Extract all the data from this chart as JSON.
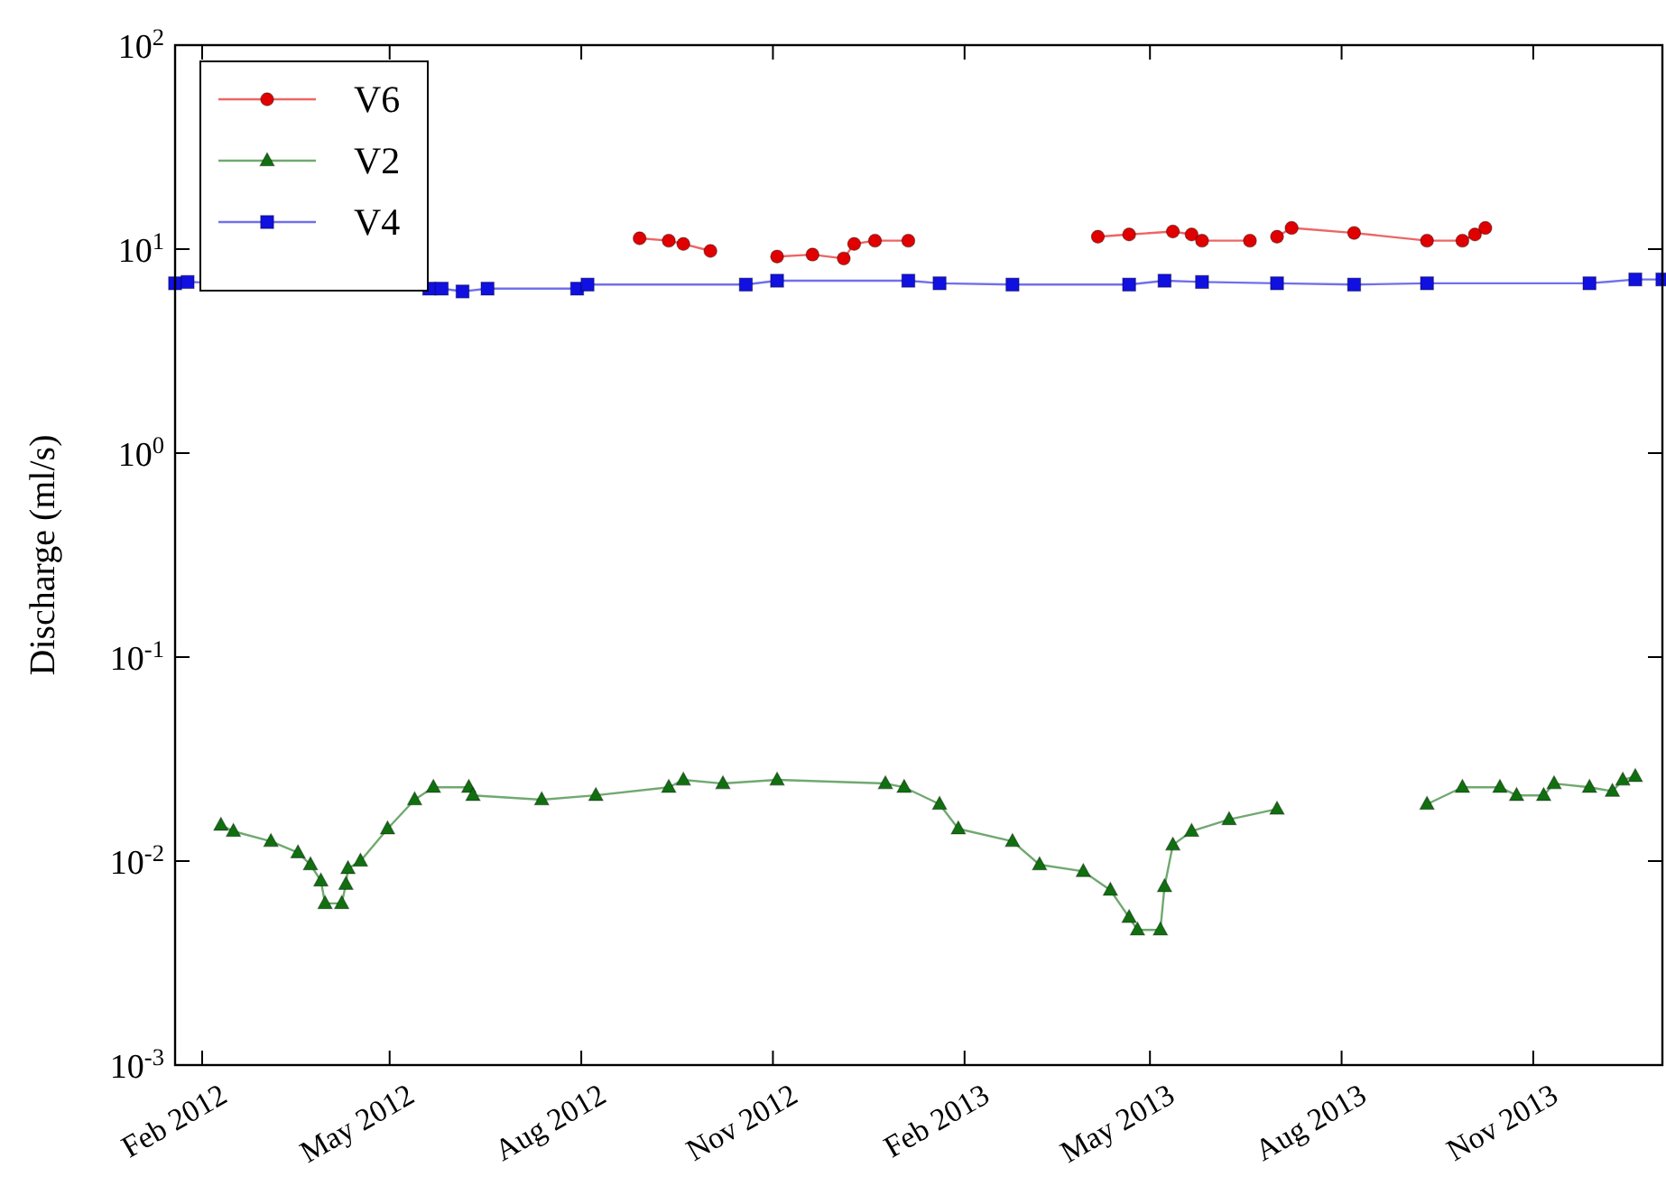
{
  "chart_data": {
    "type": "line",
    "ylabel": "Discharge (ml/s)",
    "log": "y",
    "legend": "top left",
    "grid": false,
    "xlim": [
      "2012-01-19",
      "2014-01-02"
    ],
    "ylim": [
      0.001,
      100
    ],
    "xticks": [
      {
        "value": "2012-02-01",
        "label": "Feb 2012"
      },
      {
        "value": "2012-05-01",
        "label": "May 2012"
      },
      {
        "value": "2012-08-01",
        "label": "Aug 2012"
      },
      {
        "value": "2012-11-01",
        "label": "Nov 2012"
      },
      {
        "value": "2013-02-01",
        "label": "Feb 2013"
      },
      {
        "value": "2013-05-01",
        "label": "May 2013"
      },
      {
        "value": "2013-08-01",
        "label": "Aug 2013"
      },
      {
        "value": "2013-11-01",
        "label": "Nov 2013"
      }
    ],
    "yticks": [
      {
        "value": 0.001,
        "label": "10$^{-3}$"
      },
      {
        "value": 0.01,
        "label": "10$^{-2}$"
      },
      {
        "value": 0.1,
        "label": "10$^{-1}$"
      },
      {
        "value": 1,
        "label": "10$^{0}$"
      },
      {
        "value": 10,
        "label": "10$^{1}$"
      },
      {
        "value": 100,
        "label": "10$^{2}$"
      }
    ],
    "series": [
      {
        "name": "V6",
        "color": "#e00000",
        "marker": "circle",
        "x": [
          "2012-08-29",
          "2012-09-12",
          "2012-09-19",
          "2012-10-02",
          "2012-10-19",
          "2012-11-03",
          "2012-11-20",
          "2012-12-05",
          "2012-12-10",
          "2012-12-20",
          "2013-01-05",
          "2013-02-15",
          "2013-04-06",
          "2013-04-21",
          "2013-05-12",
          "2013-05-21",
          "2013-05-26",
          "2013-06-18",
          "2013-06-25",
          "2013-07-01",
          "2013-07-08",
          "2013-08-07",
          "2013-09-11",
          "2013-09-28",
          "2013-10-04",
          "2013-10-09"
        ],
        "values": [
          11.3,
          11.0,
          10.6,
          9.8,
          null,
          9.2,
          9.4,
          9.0,
          10.6,
          11.0,
          11.0,
          null,
          11.5,
          11.8,
          12.2,
          11.8,
          11.0,
          11.0,
          null,
          11.5,
          12.7,
          12.0,
          11.0,
          11.0,
          11.8,
          12.7
        ]
      },
      {
        "name": "V2",
        "color": "#107010",
        "marker": "triangle",
        "x": [
          "2012-02-10",
          "2012-02-16",
          "2012-03-05",
          "2012-03-18",
          "2012-03-24",
          "2012-03-29",
          "2012-03-31",
          "2012-04-08",
          "2012-04-10",
          "2012-04-11",
          "2012-04-17",
          "2012-04-30",
          "2012-05-13",
          "2012-05-22",
          "2012-06-08",
          "2012-06-10",
          "2012-07-13",
          "2012-08-08",
          "2012-09-12",
          "2012-09-19",
          "2012-10-08",
          "2012-11-03",
          "2012-12-25",
          "2013-01-03",
          "2013-01-20",
          "2013-01-29",
          "2013-02-24",
          "2013-03-09",
          "2013-03-30",
          "2013-04-12",
          "2013-04-21",
          "2013-04-25",
          "2013-05-06",
          "2013-05-08",
          "2013-05-12",
          "2013-05-21",
          "2013-06-08",
          "2013-07-01",
          "2013-08-01",
          "2013-09-11",
          "2013-09-28",
          "2013-10-16",
          "2013-10-24",
          "2013-11-06",
          "2013-11-11",
          "2013-11-28",
          "2013-12-09",
          "2013-12-14",
          "2013-12-20"
        ],
        "values": [
          0.015,
          0.014,
          0.0125,
          0.011,
          0.0096,
          0.008,
          0.0062,
          0.0062,
          0.0077,
          0.0092,
          0.01,
          0.0144,
          0.02,
          0.023,
          0.023,
          0.021,
          0.02,
          0.021,
          0.023,
          0.025,
          0.024,
          0.025,
          0.024,
          0.023,
          0.019,
          0.0144,
          0.0125,
          0.0096,
          0.0089,
          0.0072,
          0.0053,
          0.0046,
          0.0046,
          0.0075,
          0.012,
          0.014,
          0.016,
          0.018,
          null,
          0.019,
          0.023,
          0.023,
          0.021,
          0.021,
          0.024,
          0.023,
          0.022,
          0.025,
          0.026
        ]
      },
      {
        "name": "V4",
        "color": "#1010e0",
        "marker": "square",
        "x": [
          "2012-01-19",
          "2012-01-25",
          "2012-05-20",
          "2012-05-26",
          "2012-06-05",
          "2012-06-17",
          "2012-07-30",
          "2012-08-04",
          "2012-10-19",
          "2012-11-03",
          "2013-01-05",
          "2013-01-20",
          "2013-02-24",
          "2013-04-21",
          "2013-05-08",
          "2013-05-26",
          "2013-07-01",
          "2013-08-07",
          "2013-09-11",
          "2013-11-28",
          "2013-12-20",
          "2014-01-02"
        ],
        "values": [
          6.8,
          6.9,
          6.4,
          6.4,
          6.2,
          6.4,
          6.4,
          6.7,
          6.7,
          7.0,
          7.0,
          6.8,
          6.7,
          6.7,
          7.0,
          6.9,
          6.8,
          6.7,
          6.8,
          6.8,
          7.1,
          7.1
        ]
      }
    ]
  }
}
